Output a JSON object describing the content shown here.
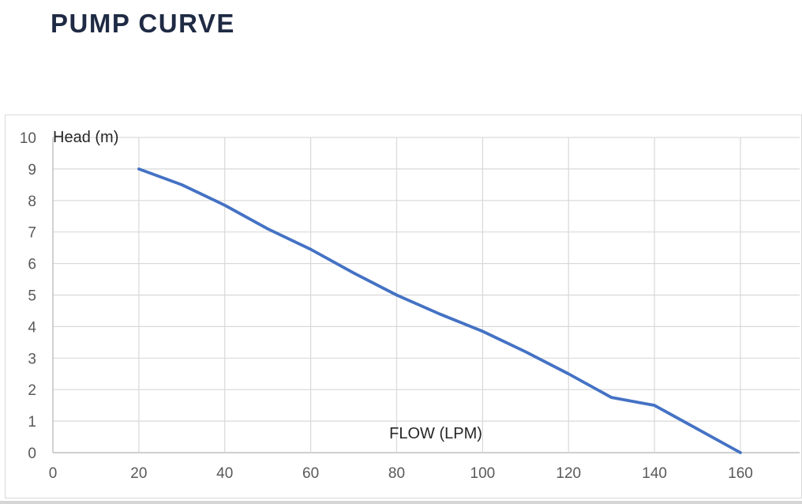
{
  "title": "PUMP CURVE",
  "colors": {
    "title_text": "#1f2a44",
    "line": "#4472C4",
    "gridline": "#d9d9d9",
    "axis_line": "#bfbfbf",
    "tick_text": "#595959",
    "axis_title_text": "#262626",
    "background": "#ffffff"
  },
  "chart_data": {
    "type": "line",
    "title": "PUMP CURVE",
    "xlabel": "FLOW (LPM)",
    "ylabel": "Head (m)",
    "x": [
      20,
      30,
      40,
      50,
      60,
      70,
      80,
      90,
      100,
      110,
      120,
      130,
      140,
      150,
      160
    ],
    "series": [
      {
        "name": "Head (m)",
        "values": [
          9.0,
          8.5,
          7.85,
          7.1,
          6.45,
          5.7,
          5.0,
          4.4,
          3.85,
          3.2,
          2.5,
          1.75,
          1.5,
          0.75,
          0.0
        ]
      }
    ],
    "xlim": [
      0,
      160
    ],
    "ylim": [
      0,
      10
    ],
    "x_ticks": [
      0,
      20,
      40,
      60,
      80,
      100,
      120,
      140,
      160
    ],
    "y_ticks": [
      0,
      1,
      2,
      3,
      4,
      5,
      6,
      7,
      8,
      9,
      10
    ],
    "grid": true,
    "legend": false,
    "legend_position": "none"
  }
}
